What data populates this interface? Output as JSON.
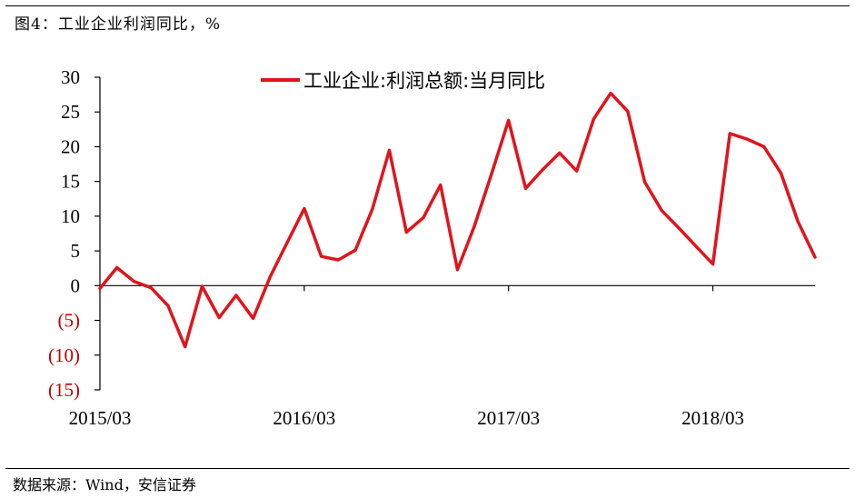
{
  "figure_title": "图4：工业企业利润同比，%",
  "source_note": "数据来源：Wind，安信证券",
  "colors": {
    "series": "#e0141c",
    "negative_label": "#c00000",
    "axis": "#000000"
  },
  "chart_data": {
    "type": "line",
    "title": "",
    "xlabel": "",
    "ylabel": "",
    "ylim": [
      -15,
      30
    ],
    "y_ticks": [
      30,
      25,
      20,
      15,
      10,
      5,
      0,
      -5,
      -10,
      -15
    ],
    "y_tick_labels": [
      "30",
      "25",
      "20",
      "15",
      "10",
      "5",
      "0",
      "(5)",
      "(10)",
      "(15)"
    ],
    "x_tick_labels": [
      "2015/03",
      "2016/03",
      "2017/03",
      "2018/03"
    ],
    "legend_position": "top-center",
    "grid": false,
    "series": [
      {
        "name": "工业企业:利润总额:当月同比",
        "x": [
          "2015-03",
          "2015-04",
          "2015-05",
          "2015-06",
          "2015-07",
          "2015-08",
          "2015-09",
          "2015-10",
          "2015-11",
          "2015-12",
          "2016-01",
          "2016-02",
          "2016-03",
          "2016-04",
          "2016-05",
          "2016-06",
          "2016-07",
          "2016-08",
          "2016-09",
          "2016-10",
          "2016-11",
          "2016-12",
          "2017-01",
          "2017-02",
          "2017-03",
          "2017-04",
          "2017-05",
          "2017-06",
          "2017-07",
          "2017-08",
          "2017-09",
          "2017-10",
          "2017-11",
          "2017-12",
          "2018-01",
          "2018-02",
          "2018-03",
          "2018-04",
          "2018-05",
          "2018-06",
          "2018-07",
          "2018-08",
          "2018-09"
        ],
        "values": [
          -0.4,
          2.6,
          0.6,
          -0.3,
          -2.9,
          -8.8,
          -0.1,
          -4.6,
          -1.4,
          -4.7,
          1.3,
          6.2,
          11.1,
          4.2,
          3.7,
          5.1,
          11.0,
          19.5,
          7.7,
          9.8,
          14.5,
          2.3,
          8.6,
          16.1,
          23.8,
          14.0,
          16.7,
          19.1,
          16.5,
          24.0,
          27.7,
          25.1,
          14.9,
          10.8,
          8.3,
          5.7,
          3.1,
          21.9,
          21.1,
          20.0,
          16.2,
          9.2,
          4.1
        ]
      }
    ]
  }
}
